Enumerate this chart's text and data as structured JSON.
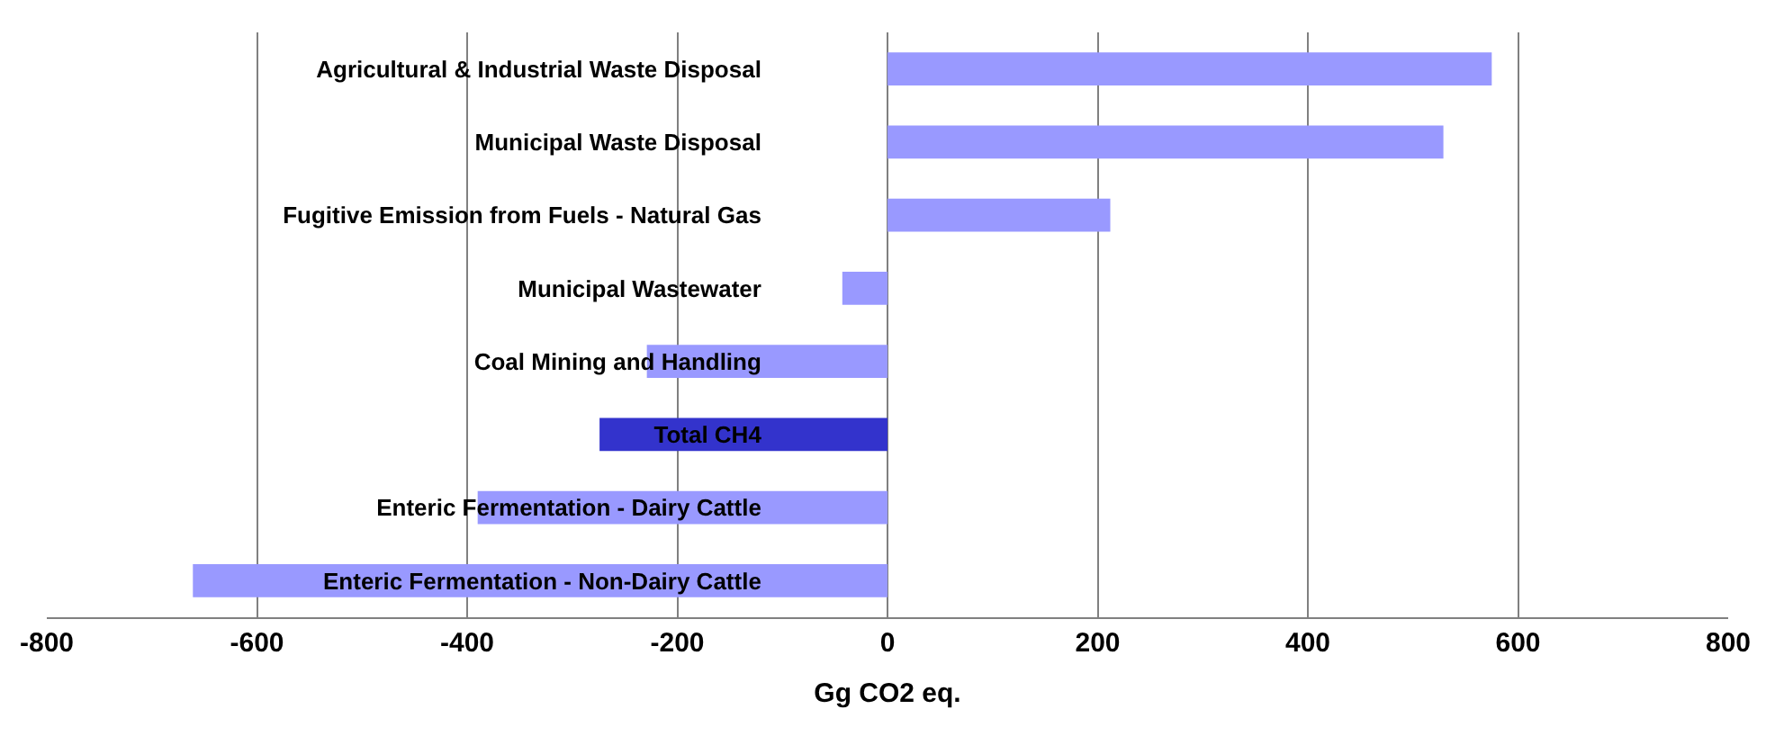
{
  "chart_data": {
    "type": "bar",
    "orientation": "horizontal",
    "xlabel": "Gg CO2 eq.",
    "categories": [
      "Agricultural & Industrial Waste Disposal",
      "Municipal Waste Disposal",
      "Fugitive Emission from Fuels - Natural Gas",
      "Municipal Wastewater",
      "Coal Mining and Handling",
      "Total CH4",
      "Enteric Fermentation - Dairy Cattle",
      "Enteric Fermentation - Non-Dairy Cattle"
    ],
    "values": [
      575,
      529,
      212,
      -43,
      -229,
      -274,
      -390,
      -661
    ],
    "colors": [
      "#9999ff",
      "#9999ff",
      "#9999ff",
      "#9999ff",
      "#9999ff",
      "#3333cc",
      "#9999ff",
      "#9999ff"
    ],
    "xlim": [
      -800,
      800
    ],
    "xticks": [
      -800,
      -600,
      -400,
      -200,
      0,
      200,
      400,
      600,
      800
    ],
    "grid": "x"
  }
}
